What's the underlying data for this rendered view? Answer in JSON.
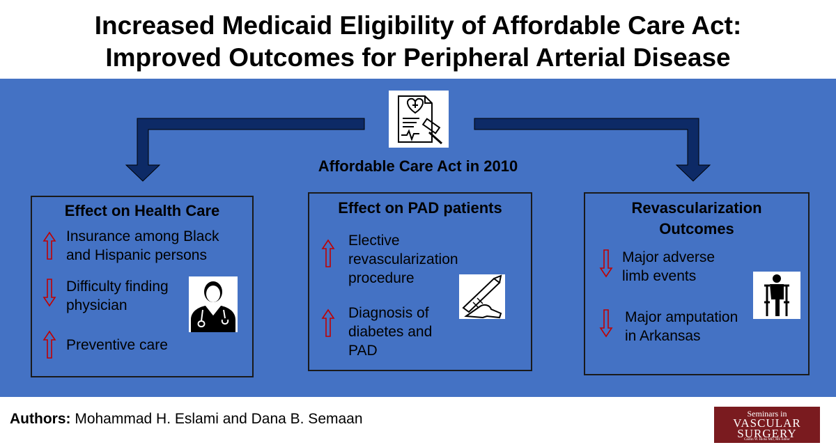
{
  "title": {
    "line1": "Increased Medicaid Eligibility of Affordable Care Act:",
    "line2": "Improved Outcomes for Peripheral Arterial Disease"
  },
  "center": {
    "label": "Affordable Care Act in 2010",
    "icon": "legal-document-heart-gavel-icon"
  },
  "colors": {
    "panel": "#4472c4",
    "arrow": "#0d2a66",
    "indicator": "#c00000",
    "logo": "#7a1b1f"
  },
  "boxes": {
    "health_care": {
      "title": "Effect on Health Care",
      "items": [
        {
          "direction": "up",
          "line1": "Insurance among Black",
          "line2": "and Hispanic persons"
        },
        {
          "direction": "down",
          "line1": "Difficulty finding",
          "line2": "physician"
        },
        {
          "direction": "up",
          "line1": "Preventive care",
          "line2": ""
        }
      ],
      "icon": "doctor-icon"
    },
    "pad_patients": {
      "title": "Effect on PAD patients",
      "items": [
        {
          "direction": "up",
          "line1": "Elective",
          "line2": "revascularization",
          "line3": "procedure"
        },
        {
          "direction": "up",
          "line1": "Diagnosis of",
          "line2": "diabetes and",
          "line3": "PAD"
        }
      ],
      "icon": "scalpel-hand-icon"
    },
    "revasc": {
      "title_line1": "Revascularization",
      "title_line2": "Outcomes",
      "items": [
        {
          "direction": "down",
          "line1": "Major adverse",
          "line2": "limb events"
        },
        {
          "direction": "down",
          "line1": "Major amputation",
          "line2": "in Arkansas"
        }
      ],
      "icon": "amputee-crutches-icon"
    }
  },
  "footer": {
    "authors_label": "Authors:",
    "authors_names": " Mohammad H. Eslami and Dana B. Semaan"
  },
  "logo": {
    "line1": "Seminars in",
    "line2": "VASCULAR",
    "line3": "SURGERY",
    "line4": "Caitlin W. Hicks MD, MS Editor"
  }
}
